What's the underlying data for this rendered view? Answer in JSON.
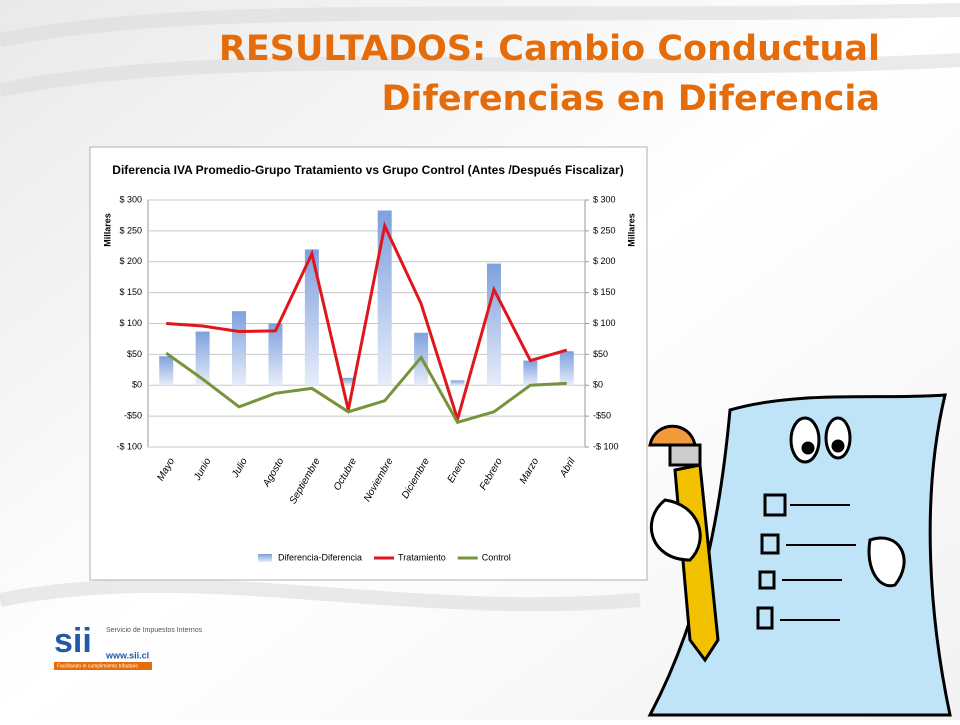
{
  "slide": {
    "title_lines": [
      "RESULTADOS: Cambio Conductual",
      "Diferencias en Diferencia"
    ],
    "logo": {
      "mark": "sii",
      "name": "Servicio de Impuestos Internos",
      "url": "www.sii.cl",
      "tagline": "Facilitando el cumplimiento tributario"
    }
  },
  "chart_data": {
    "type": "bar",
    "title": "Diferencia IVA Promedio-Grupo Tratamiento vs Grupo Control (Antes /Después Fiscalizar)",
    "y_label": "Millares",
    "y2_label": "Millares",
    "categories": [
      "Mayo",
      "Junio",
      "Julio",
      "Agosto",
      "Septiembre",
      "Octubre",
      "Noviembre",
      "Diciembre",
      "Enero",
      "Febrero",
      "Marzo",
      "Abril"
    ],
    "series": [
      {
        "name": "Diferencia-Diferencia",
        "type": "bar",
        "color": "#9fb9e6",
        "values": [
          47,
          87,
          120,
          100,
          220,
          12,
          283,
          85,
          8,
          197,
          40,
          55
        ]
      },
      {
        "name": "Tratamiento",
        "type": "line",
        "color": "#e0161b",
        "values": [
          100,
          96,
          87,
          88,
          213,
          -40,
          258,
          132,
          -55,
          155,
          40,
          57
        ]
      },
      {
        "name": "Control",
        "type": "line",
        "color": "#77933c",
        "values": [
          52,
          10,
          -35,
          -13,
          -5,
          -43,
          -25,
          45,
          -60,
          -43,
          0,
          3
        ]
      }
    ],
    "ylim": [
      -100,
      300
    ],
    "yticks": [
      {
        "value": -100,
        "label": "-$ 100"
      },
      {
        "value": -50,
        "label": "-$50"
      },
      {
        "value": 0,
        "label": "$0"
      },
      {
        "value": 50,
        "label": "$50"
      },
      {
        "value": 100,
        "label": "$ 100"
      },
      {
        "value": 150,
        "label": "$ 150"
      },
      {
        "value": 200,
        "label": "$ 200"
      },
      {
        "value": 250,
        "label": "$ 250"
      },
      {
        "value": 300,
        "label": "$ 300"
      }
    ],
    "y2lim": [
      -100,
      300
    ],
    "y2ticks": [
      {
        "value": -100,
        "label": "-$ 100"
      },
      {
        "value": -50,
        "label": "-$50"
      },
      {
        "value": 0,
        "label": "$0"
      },
      {
        "value": 50,
        "label": "$50"
      },
      {
        "value": 100,
        "label": "$ 100"
      },
      {
        "value": 150,
        "label": "$ 150"
      },
      {
        "value": 200,
        "label": "$ 200"
      },
      {
        "value": 250,
        "label": "$ 250"
      },
      {
        "value": 300,
        "label": "$ 300"
      }
    ],
    "grid": true,
    "legend": "bottom"
  }
}
